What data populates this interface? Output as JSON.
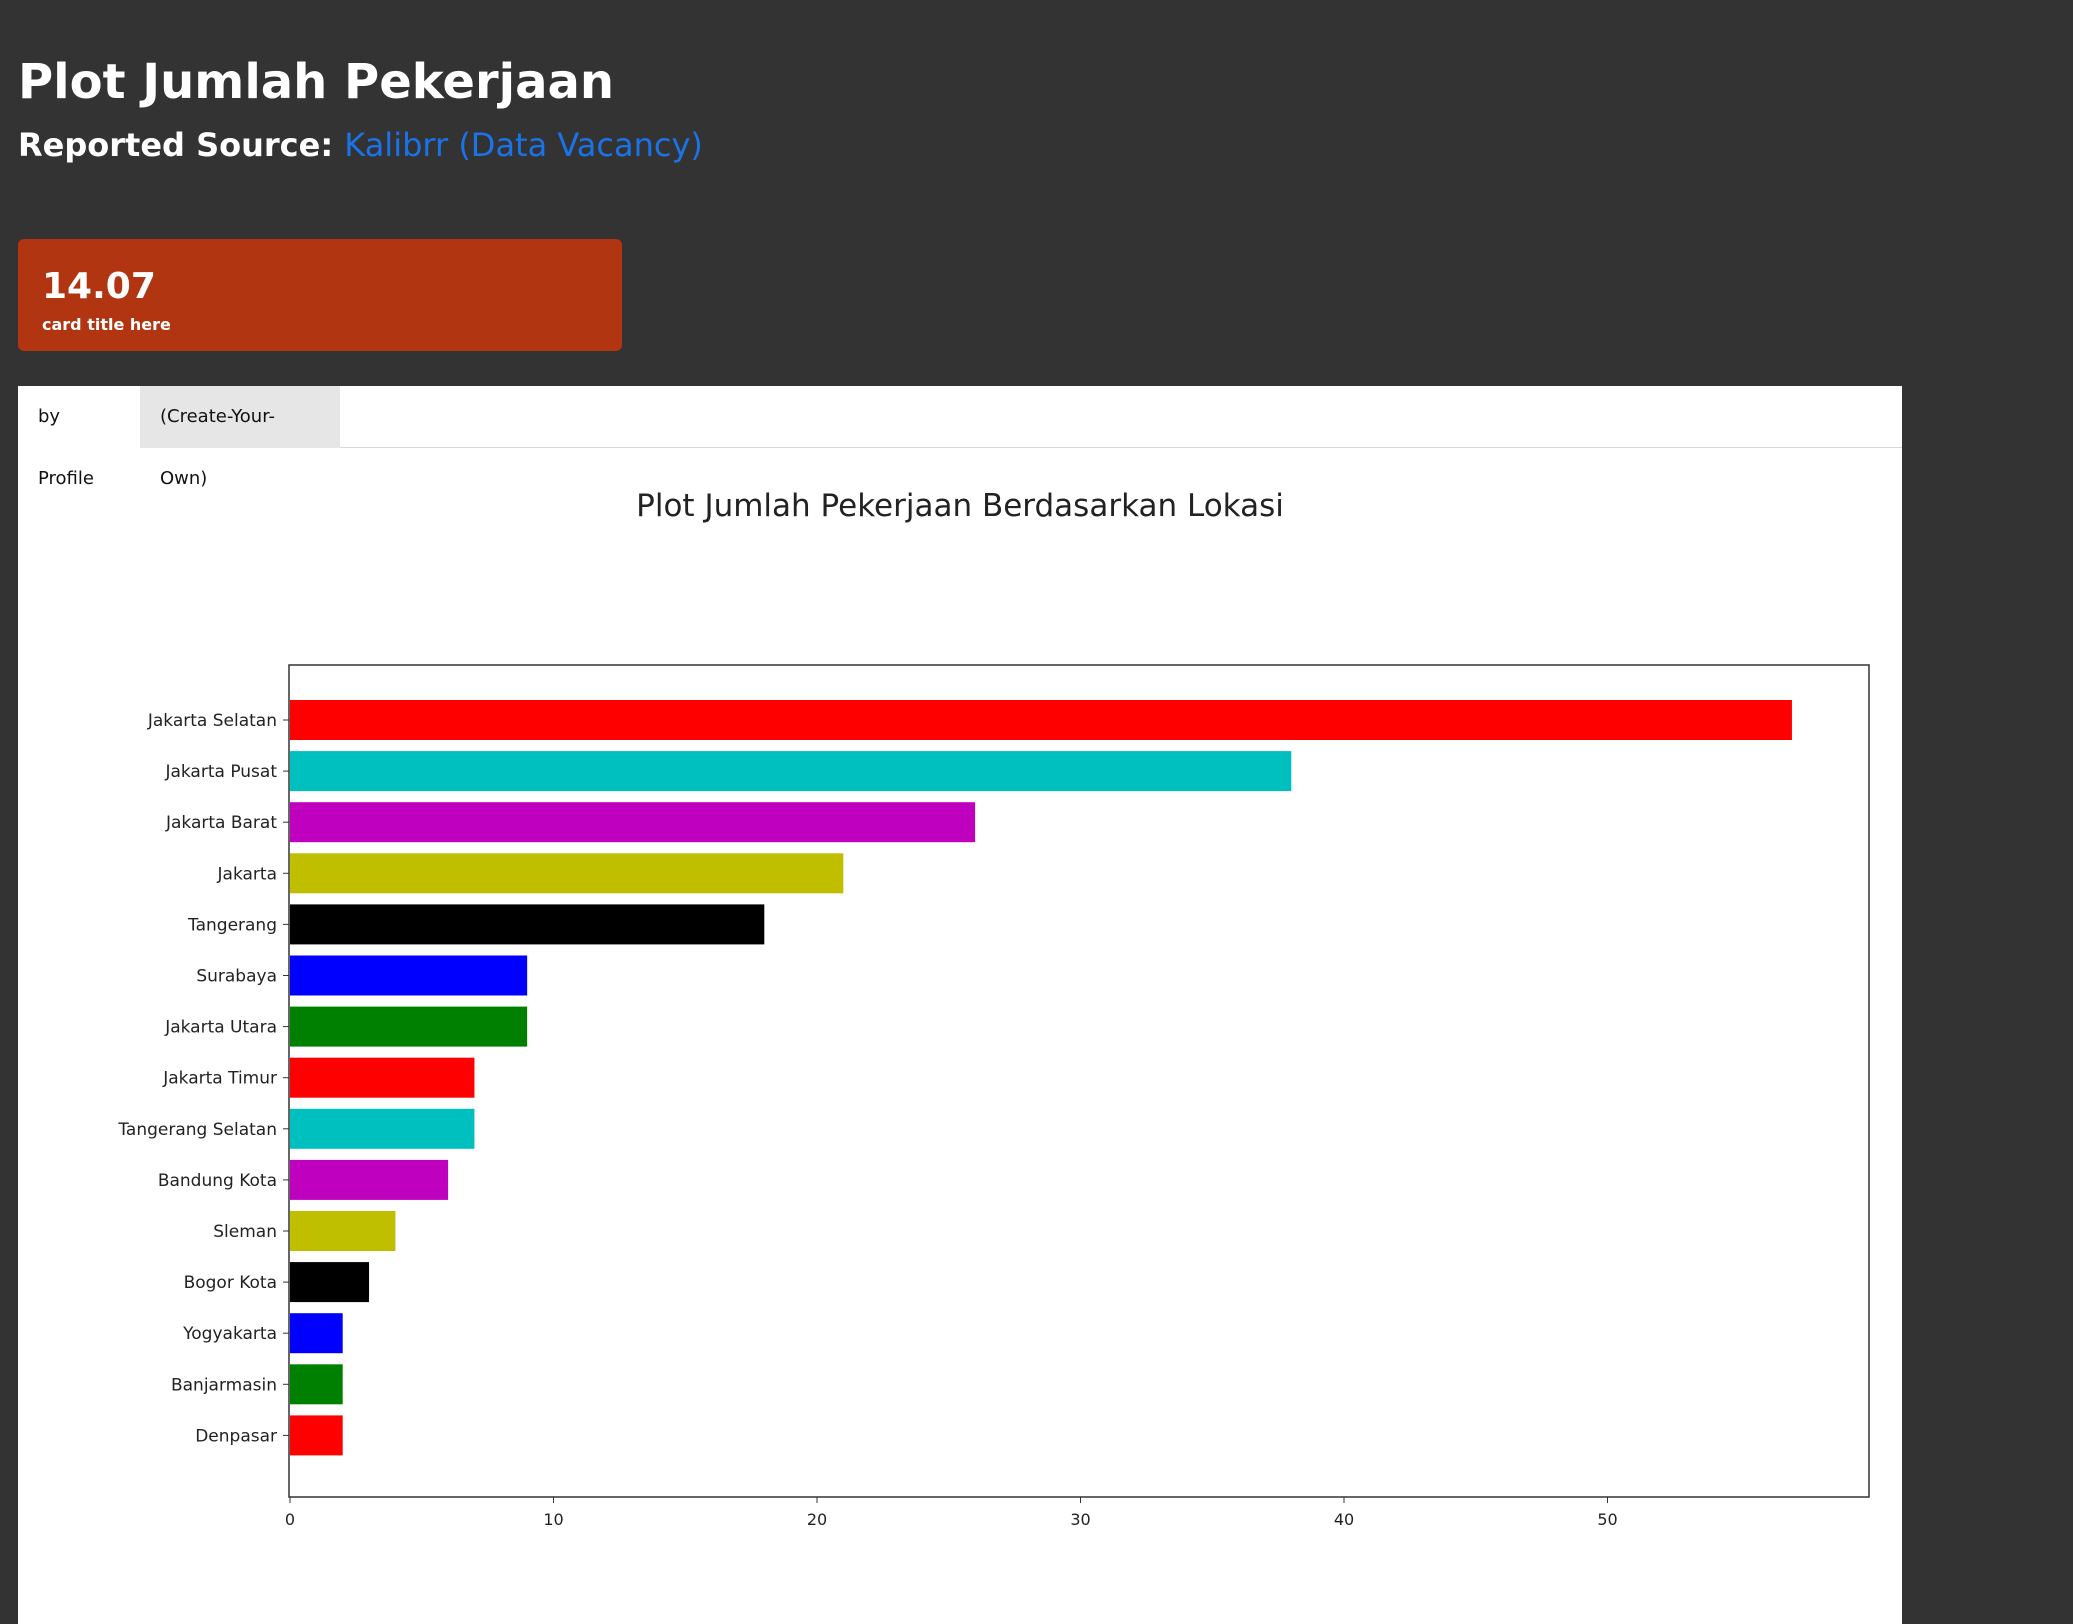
{
  "header": {
    "title": "Plot Jumlah Pekerjaan",
    "source_prefix": "Reported Source:",
    "source_link": "Kalibrr (Data Vacancy)"
  },
  "card": {
    "value": "14.07",
    "label": "card title here"
  },
  "tabs": [
    {
      "label": "by Profile"
    },
    {
      "label": "(Create-Your-Own)"
    }
  ],
  "colors": {
    "background": "#333333",
    "card": "#b03510",
    "link": "#1a73e8"
  },
  "chart_data": {
    "type": "bar",
    "orientation": "horizontal",
    "title": "Plot Jumlah Pekerjaan Berdasarkan Lokasi",
    "xlabel": "",
    "ylabel": "",
    "xlim": [
      0,
      60
    ],
    "xticks": [
      0,
      10,
      20,
      30,
      40,
      50
    ],
    "grid": false,
    "categories": [
      "Jakarta Selatan",
      "Jakarta Pusat",
      "Jakarta Barat",
      "Jakarta",
      "Tangerang",
      "Surabaya",
      "Jakarta Utara",
      "Jakarta Timur",
      "Tangerang Selatan",
      "Bandung Kota",
      "Sleman",
      "Bogor Kota",
      "Yogyakarta",
      "Banjarmasin",
      "Denpasar"
    ],
    "values": [
      57,
      38,
      26,
      21,
      18,
      9,
      9,
      7,
      7,
      6,
      4,
      3,
      2,
      2,
      2
    ],
    "bar_colors": [
      "#ff0000",
      "#00bfbf",
      "#bf00bf",
      "#bfbf00",
      "#000000",
      "#0000ff",
      "#008000",
      "#ff0000",
      "#00bfbf",
      "#bf00bf",
      "#bfbf00",
      "#000000",
      "#0000ff",
      "#008000",
      "#ff0000"
    ]
  }
}
